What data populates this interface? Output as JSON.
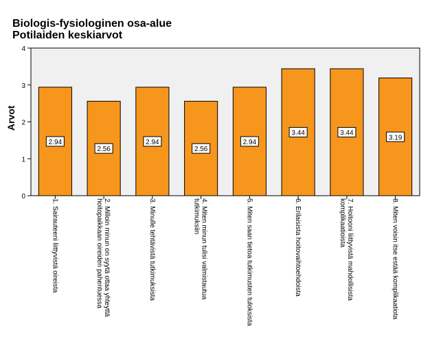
{
  "chart_data": {
    "type": "bar",
    "title": "Biologis-fysiologinen osa-alue",
    "subtitle": "Potilaiden keskiarvot",
    "xlabel": "",
    "ylabel": "Arvot",
    "ylim": [
      0,
      4
    ],
    "yticks": [
      0,
      1,
      2,
      3,
      4
    ],
    "grid": false,
    "categories": [
      [
        "1. Sairauteeni liittyvistä oireista"
      ],
      [
        "2. Milloin minun on syytä ottaa yhteyttä",
        "hoitopaikkaan oireiden pahentuessa"
      ],
      [
        "3. Minulle tehtävistä tutkimuksista"
      ],
      [
        "4. Miten minun tulisi valmistautua",
        "tutkimuksiin"
      ],
      [
        "5. Miten saan tietoa tutkimusten tuloksista"
      ],
      [
        "6. Erilaisista hoitovaihtoehdoista"
      ],
      [
        "7. Hoitooni liittyvistä mahdollisista",
        "komplikaatioista"
      ],
      [
        "8. Miten voisin itse estää komplikaatiota"
      ]
    ],
    "values": [
      2.94,
      2.56,
      2.94,
      2.56,
      2.94,
      3.44,
      3.44,
      3.19
    ],
    "data_labels": [
      "2.94",
      "2.56",
      "2.94",
      "2.56",
      "2.94",
      "3.44",
      "3.44",
      "3.19"
    ],
    "colors": {
      "bar": "#f7961d",
      "bar_edge": "#000000",
      "plot_bg": "#f0f0f0"
    }
  }
}
